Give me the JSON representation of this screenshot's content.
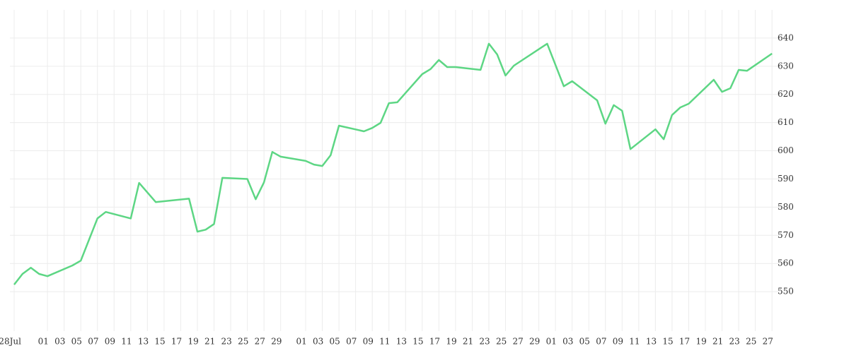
{
  "chart_data": {
    "type": "line",
    "x": [
      0,
      1,
      2,
      3,
      4,
      7,
      8,
      10,
      11,
      14,
      15,
      17,
      21,
      22,
      23,
      24,
      25,
      28,
      29,
      30,
      31,
      32,
      35,
      36,
      37,
      38,
      39,
      42,
      43,
      44,
      45,
      46,
      49,
      50,
      51,
      52,
      53,
      56,
      57,
      58,
      59,
      60,
      64,
      66,
      67,
      70,
      71,
      72,
      73,
      74,
      77,
      78,
      79,
      80,
      81,
      84,
      85,
      86,
      87,
      88,
      91
    ],
    "series": [
      {
        "name": null,
        "color": "#5dd684",
        "values": [
          552.5,
          556.3,
          558.5,
          556.3,
          555.5,
          559.3,
          561,
          576,
          578.3,
          576,
          588.6,
          581.8,
          583,
          571.3,
          572,
          574,
          590.4,
          590,
          582.8,
          588.8,
          599.6,
          597.9,
          596.4,
          595.1,
          594.6,
          598.4,
          608.9,
          606.9,
          608.1,
          609.9,
          616.9,
          617.2,
          627.2,
          629,
          632.2,
          629.7,
          629.7,
          628.7,
          638,
          634.2,
          626.7,
          630.2,
          638,
          622.9,
          624.7,
          617.9,
          609.6,
          616.2,
          614.2,
          600.6,
          607.6,
          604.1,
          612.7,
          615.4,
          616.7,
          625.2,
          620.9,
          622.2,
          628.7,
          628.4,
          634.5
        ]
      }
    ],
    "xlim": [
      -1.7,
      92.6
    ],
    "xticks": [
      {
        "value": 0,
        "label": "28Jul"
      },
      {
        "value": 4,
        "label": "01"
      },
      {
        "value": 6,
        "label": "03"
      },
      {
        "value": 8,
        "label": "05"
      },
      {
        "value": 10,
        "label": "07"
      },
      {
        "value": 12,
        "label": "09"
      },
      {
        "value": 14,
        "label": "11"
      },
      {
        "value": 16,
        "label": "13"
      },
      {
        "value": 18,
        "label": "15"
      },
      {
        "value": 20,
        "label": "17"
      },
      {
        "value": 22,
        "label": "19"
      },
      {
        "value": 24,
        "label": "21"
      },
      {
        "value": 26,
        "label": "23"
      },
      {
        "value": 28,
        "label": "25"
      },
      {
        "value": 30,
        "label": "27"
      },
      {
        "value": 32,
        "label": "29"
      },
      {
        "value": 35,
        "label": "01"
      },
      {
        "value": 37,
        "label": "03"
      },
      {
        "value": 39,
        "label": "05"
      },
      {
        "value": 41,
        "label": "07"
      },
      {
        "value": 43,
        "label": "09"
      },
      {
        "value": 45,
        "label": "11"
      },
      {
        "value": 47,
        "label": "13"
      },
      {
        "value": 49,
        "label": "15"
      },
      {
        "value": 51,
        "label": "17"
      },
      {
        "value": 53,
        "label": "19"
      },
      {
        "value": 55,
        "label": "21"
      },
      {
        "value": 57,
        "label": "23"
      },
      {
        "value": 59,
        "label": "25"
      },
      {
        "value": 61,
        "label": "27"
      },
      {
        "value": 63,
        "label": "29"
      },
      {
        "value": 65,
        "label": "01"
      },
      {
        "value": 67,
        "label": "03"
      },
      {
        "value": 69,
        "label": "05"
      },
      {
        "value": 71,
        "label": "07"
      },
      {
        "value": 73,
        "label": "09"
      },
      {
        "value": 75,
        "label": "11"
      },
      {
        "value": 77,
        "label": "13"
      },
      {
        "value": 79,
        "label": "15"
      },
      {
        "value": 81,
        "label": "17"
      },
      {
        "value": 83,
        "label": "19"
      },
      {
        "value": 85,
        "label": "21"
      },
      {
        "value": 87,
        "label": "23"
      },
      {
        "value": 89,
        "label": "25"
      },
      {
        "value": 91,
        "label": "27"
      }
    ],
    "ylim": [
      536,
      650
    ],
    "yticks": [
      550,
      560,
      570,
      580,
      590,
      600,
      610,
      620,
      630,
      640
    ],
    "grid": true
  }
}
